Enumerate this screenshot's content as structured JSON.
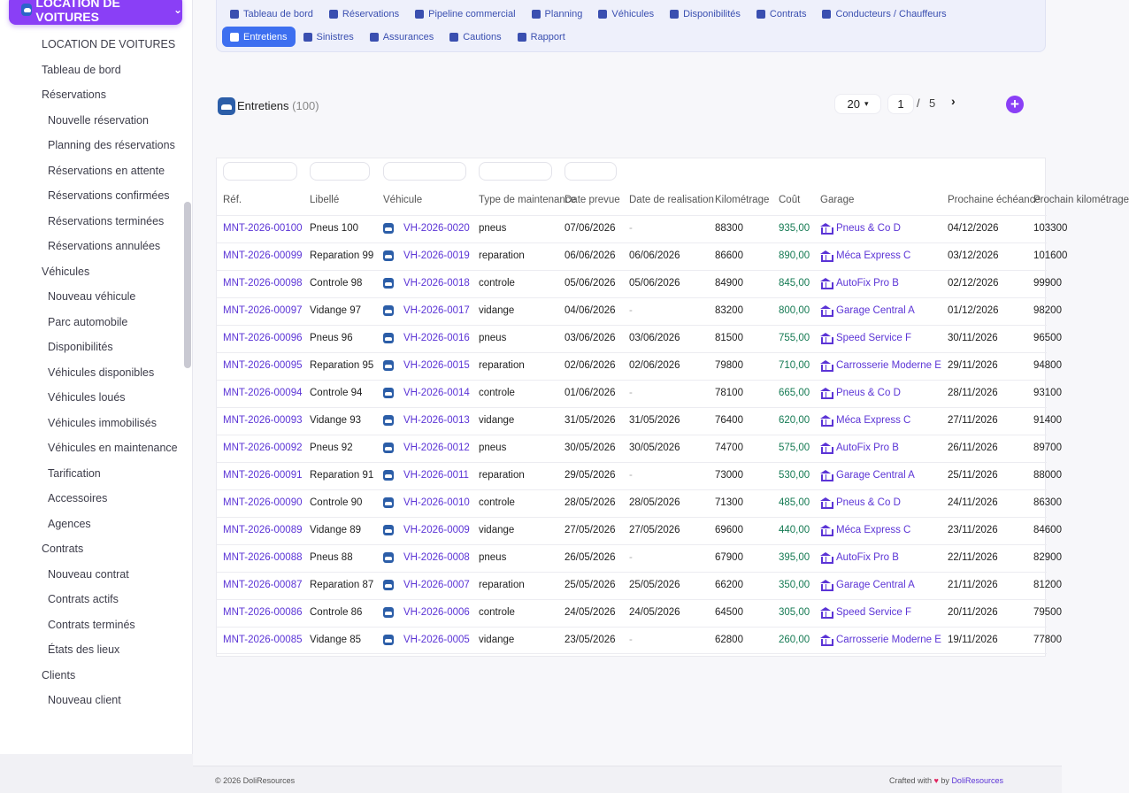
{
  "sidebar": {
    "module_label": "LOCATION DE VOITURES",
    "items": [
      {
        "label": "LOCATION DE VOITURES",
        "level": 0
      },
      {
        "label": "Tableau de bord",
        "level": 0
      },
      {
        "label": "Réservations",
        "level": 0
      },
      {
        "label": "Nouvelle réservation",
        "level": 1
      },
      {
        "label": "Planning des réservations",
        "level": 1
      },
      {
        "label": "Réservations en attente",
        "level": 1
      },
      {
        "label": "Réservations confirmées",
        "level": 1
      },
      {
        "label": "Réservations terminées",
        "level": 1
      },
      {
        "label": "Réservations annulées",
        "level": 1
      },
      {
        "label": "Véhicules",
        "level": 0
      },
      {
        "label": "Nouveau véhicule",
        "level": 1
      },
      {
        "label": "Parc automobile",
        "level": 1
      },
      {
        "label": "Disponibilités",
        "level": 1
      },
      {
        "label": "Véhicules disponibles",
        "level": 1
      },
      {
        "label": "Véhicules loués",
        "level": 1
      },
      {
        "label": "Véhicules immobilisés",
        "level": 1
      },
      {
        "label": "Véhicules en maintenance",
        "level": 1
      },
      {
        "label": "Tarification",
        "level": 1
      },
      {
        "label": "Accessoires",
        "level": 1
      },
      {
        "label": "Agences",
        "level": 1
      },
      {
        "label": "Contrats",
        "level": 0
      },
      {
        "label": "Nouveau contrat",
        "level": 1
      },
      {
        "label": "Contrats actifs",
        "level": 1
      },
      {
        "label": "Contrats terminés",
        "level": 1
      },
      {
        "label": "États des lieux",
        "level": 1
      },
      {
        "label": "Clients",
        "level": 0
      },
      {
        "label": "Nouveau client",
        "level": 1
      }
    ]
  },
  "topnav": {
    "row1": [
      {
        "label": "Tableau de bord",
        "icon": "dashboard-icon"
      },
      {
        "label": "Réservations",
        "icon": "calendar-check-icon"
      },
      {
        "label": "Pipeline commercial",
        "icon": "list-icon"
      },
      {
        "label": "Planning",
        "icon": "calendar-icon"
      },
      {
        "label": "Véhicules",
        "icon": "car-icon"
      },
      {
        "label": "Disponibilités",
        "icon": "grid-icon"
      },
      {
        "label": "Contrats",
        "icon": "signature-icon"
      },
      {
        "label": "Conducteurs / Chauffeurs",
        "icon": "id-card-icon"
      }
    ],
    "row2": [
      {
        "label": "Entretiens",
        "icon": "wrench-icon",
        "active": true
      },
      {
        "label": "Sinistres",
        "icon": "car-crash-icon"
      },
      {
        "label": "Assurances",
        "icon": "shield-icon"
      },
      {
        "label": "Cautions",
        "icon": "money-icon"
      },
      {
        "label": "Rapport",
        "icon": "chart-pie-icon"
      }
    ]
  },
  "page": {
    "title": "Entretiens",
    "count": "(100)"
  },
  "pagination": {
    "limit": "20",
    "current_page": "1",
    "separator": "/",
    "total_pages": "5",
    "next_label": "›",
    "add_label": "+"
  },
  "table": {
    "columns": [
      "Réf.",
      "Libellé",
      "Véhicule",
      "Type de maintenance",
      "Date prevue",
      "Date de realisation",
      "Kilométrage",
      "Coût",
      "Garage",
      "Prochaine échéance",
      "Prochain kilométrage"
    ],
    "rows": [
      [
        "MNT-2026-00100",
        "Pneus 100",
        "VH-2026-0020",
        "pneus",
        "07/06/2026",
        "-",
        "88300",
        "935,00",
        "Pneus & Co D",
        "04/12/2026",
        "103300"
      ],
      [
        "MNT-2026-00099",
        "Reparation 99",
        "VH-2026-0019",
        "reparation",
        "06/06/2026",
        "06/06/2026",
        "86600",
        "890,00",
        "Méca Express C",
        "03/12/2026",
        "101600"
      ],
      [
        "MNT-2026-00098",
        "Controle 98",
        "VH-2026-0018",
        "controle",
        "05/06/2026",
        "05/06/2026",
        "84900",
        "845,00",
        "AutoFix Pro B",
        "02/12/2026",
        "99900"
      ],
      [
        "MNT-2026-00097",
        "Vidange 97",
        "VH-2026-0017",
        "vidange",
        "04/06/2026",
        "-",
        "83200",
        "800,00",
        "Garage Central A",
        "01/12/2026",
        "98200"
      ],
      [
        "MNT-2026-00096",
        "Pneus 96",
        "VH-2026-0016",
        "pneus",
        "03/06/2026",
        "03/06/2026",
        "81500",
        "755,00",
        "Speed Service F",
        "30/11/2026",
        "96500"
      ],
      [
        "MNT-2026-00095",
        "Reparation 95",
        "VH-2026-0015",
        "reparation",
        "02/06/2026",
        "02/06/2026",
        "79800",
        "710,00",
        "Carrosserie Moderne E",
        "29/11/2026",
        "94800"
      ],
      [
        "MNT-2026-00094",
        "Controle 94",
        "VH-2026-0014",
        "controle",
        "01/06/2026",
        "-",
        "78100",
        "665,00",
        "Pneus & Co D",
        "28/11/2026",
        "93100"
      ],
      [
        "MNT-2026-00093",
        "Vidange 93",
        "VH-2026-0013",
        "vidange",
        "31/05/2026",
        "31/05/2026",
        "76400",
        "620,00",
        "Méca Express C",
        "27/11/2026",
        "91400"
      ],
      [
        "MNT-2026-00092",
        "Pneus 92",
        "VH-2026-0012",
        "pneus",
        "30/05/2026",
        "30/05/2026",
        "74700",
        "575,00",
        "AutoFix Pro B",
        "26/11/2026",
        "89700"
      ],
      [
        "MNT-2026-00091",
        "Reparation 91",
        "VH-2026-0011",
        "reparation",
        "29/05/2026",
        "-",
        "73000",
        "530,00",
        "Garage Central A",
        "25/11/2026",
        "88000"
      ],
      [
        "MNT-2026-00090",
        "Controle 90",
        "VH-2026-0010",
        "controle",
        "28/05/2026",
        "28/05/2026",
        "71300",
        "485,00",
        "Pneus & Co D",
        "24/11/2026",
        "86300"
      ],
      [
        "MNT-2026-00089",
        "Vidange 89",
        "VH-2026-0009",
        "vidange",
        "27/05/2026",
        "27/05/2026",
        "69600",
        "440,00",
        "Méca Express C",
        "23/11/2026",
        "84600"
      ],
      [
        "MNT-2026-00088",
        "Pneus 88",
        "VH-2026-0008",
        "pneus",
        "26/05/2026",
        "-",
        "67900",
        "395,00",
        "AutoFix Pro B",
        "22/11/2026",
        "82900"
      ],
      [
        "MNT-2026-00087",
        "Reparation 87",
        "VH-2026-0007",
        "reparation",
        "25/05/2026",
        "25/05/2026",
        "66200",
        "350,00",
        "Garage Central A",
        "21/11/2026",
        "81200"
      ],
      [
        "MNT-2026-00086",
        "Controle 86",
        "VH-2026-0006",
        "controle",
        "24/05/2026",
        "24/05/2026",
        "64500",
        "305,00",
        "Speed Service F",
        "20/11/2026",
        "79500"
      ],
      [
        "MNT-2026-00085",
        "Vidange 85",
        "VH-2026-0005",
        "vidange",
        "23/05/2026",
        "-",
        "62800",
        "260,00",
        "Carrosserie Moderne E",
        "19/11/2026",
        "77800"
      ]
    ]
  },
  "footer": {
    "copyright": "© 2026 DoliResources",
    "crafted_prefix": "Crafted with",
    "heart": "♥",
    "by": "by",
    "brand": "DoliResources"
  },
  "colors": {
    "accent": "#8a3ff6",
    "nav_active": "#3d6ff0",
    "link": "#5b34d6",
    "cost": "#157a53"
  }
}
